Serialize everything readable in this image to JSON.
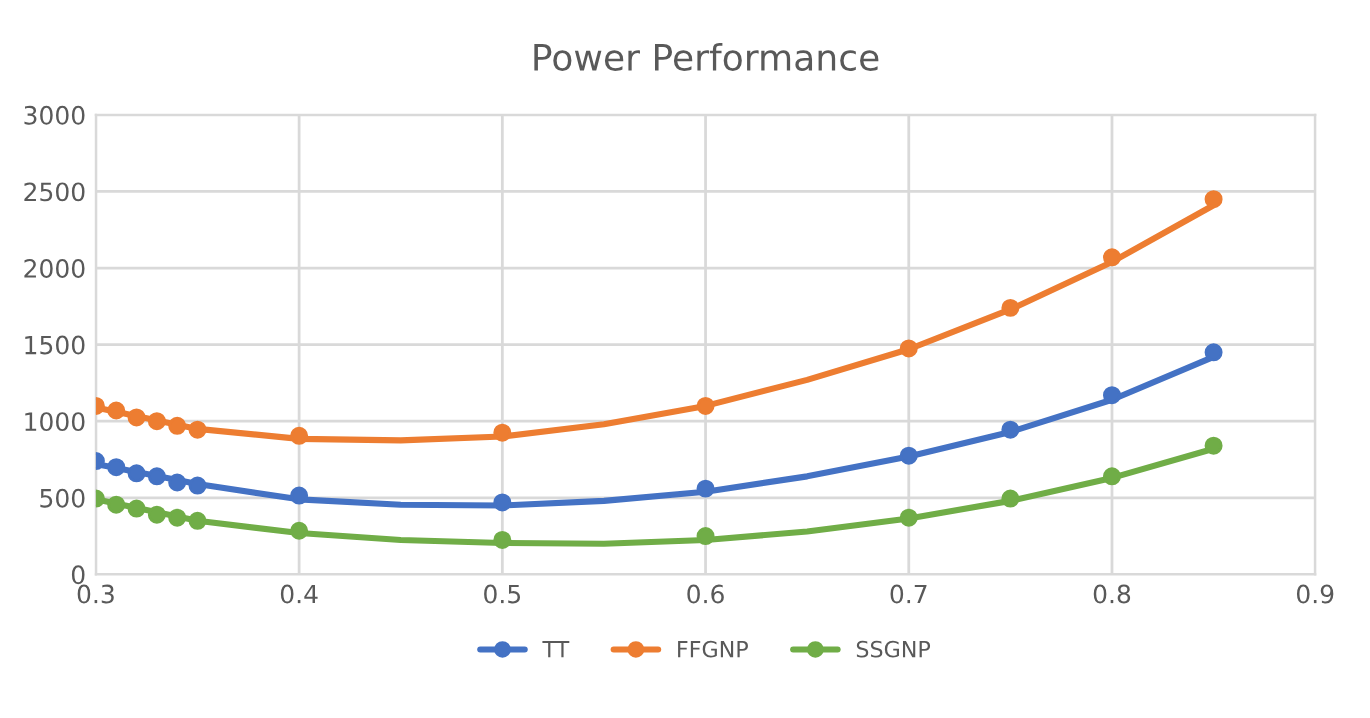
{
  "chart_data": {
    "type": "scatter",
    "title": "Power Performance",
    "xlim": [
      0.3,
      0.9
    ],
    "xticks": [
      0.3,
      0.4,
      0.5,
      0.6,
      0.7,
      0.8,
      0.9
    ],
    "ylim": [
      0,
      3000
    ],
    "yticks": [
      0,
      500,
      1000,
      1500,
      2000,
      2500,
      3000
    ],
    "grid": true,
    "legend": "bottom",
    "marker": "circle",
    "series": [
      {
        "name": "TT",
        "color": "#4472c4",
        "x": [
          0.3,
          0.31,
          0.32,
          0.33,
          0.34,
          0.35,
          0.4,
          0.5,
          0.6,
          0.7,
          0.75,
          0.8,
          0.85
        ],
        "values": [
          740,
          700,
          660,
          640,
          600,
          580,
          515,
          470,
          560,
          775,
          945,
          1170,
          1450
        ]
      },
      {
        "name": "FFGNP",
        "color": "#ed7d31",
        "x": [
          0.3,
          0.31,
          0.32,
          0.33,
          0.34,
          0.35,
          0.4,
          0.5,
          0.6,
          0.7,
          0.75,
          0.8,
          0.85
        ],
        "values": [
          1100,
          1070,
          1025,
          1000,
          970,
          945,
          905,
          925,
          1100,
          1475,
          1740,
          2070,
          2450
        ]
      },
      {
        "name": "SSGNP",
        "color": "#70ad47",
        "x": [
          0.3,
          0.31,
          0.32,
          0.33,
          0.34,
          0.35,
          0.4,
          0.5,
          0.6,
          0.7,
          0.75,
          0.8,
          0.85
        ],
        "values": [
          495,
          455,
          430,
          390,
          370,
          350,
          285,
          225,
          250,
          370,
          495,
          640,
          840
        ]
      },
      {
        "type": "line",
        "marker": "none",
        "color": "#4472c4",
        "x": [
          0.3,
          0.35,
          0.4,
          0.45,
          0.5,
          0.55,
          0.6,
          0.65,
          0.7,
          0.75,
          0.8,
          0.85
        ],
        "values": [
          720,
          590,
          490,
          455,
          450,
          480,
          540,
          640,
          770,
          930,
          1140,
          1420
        ]
      },
      {
        "type": "line",
        "marker": "none",
        "color": "#ed7d31",
        "x": [
          0.3,
          0.35,
          0.4,
          0.45,
          0.5,
          0.55,
          0.6,
          0.65,
          0.7,
          0.75,
          0.8,
          0.85
        ],
        "values": [
          1090,
          950,
          885,
          875,
          900,
          980,
          1100,
          1270,
          1470,
          1730,
          2040,
          2410
        ]
      },
      {
        "type": "line",
        "marker": "none",
        "color": "#70ad47",
        "x": [
          0.3,
          0.35,
          0.4,
          0.45,
          0.5,
          0.55,
          0.6,
          0.65,
          0.7,
          0.75,
          0.8,
          0.85
        ],
        "values": [
          490,
          350,
          270,
          225,
          205,
          200,
          225,
          280,
          365,
          480,
          630,
          820
        ]
      }
    ]
  }
}
